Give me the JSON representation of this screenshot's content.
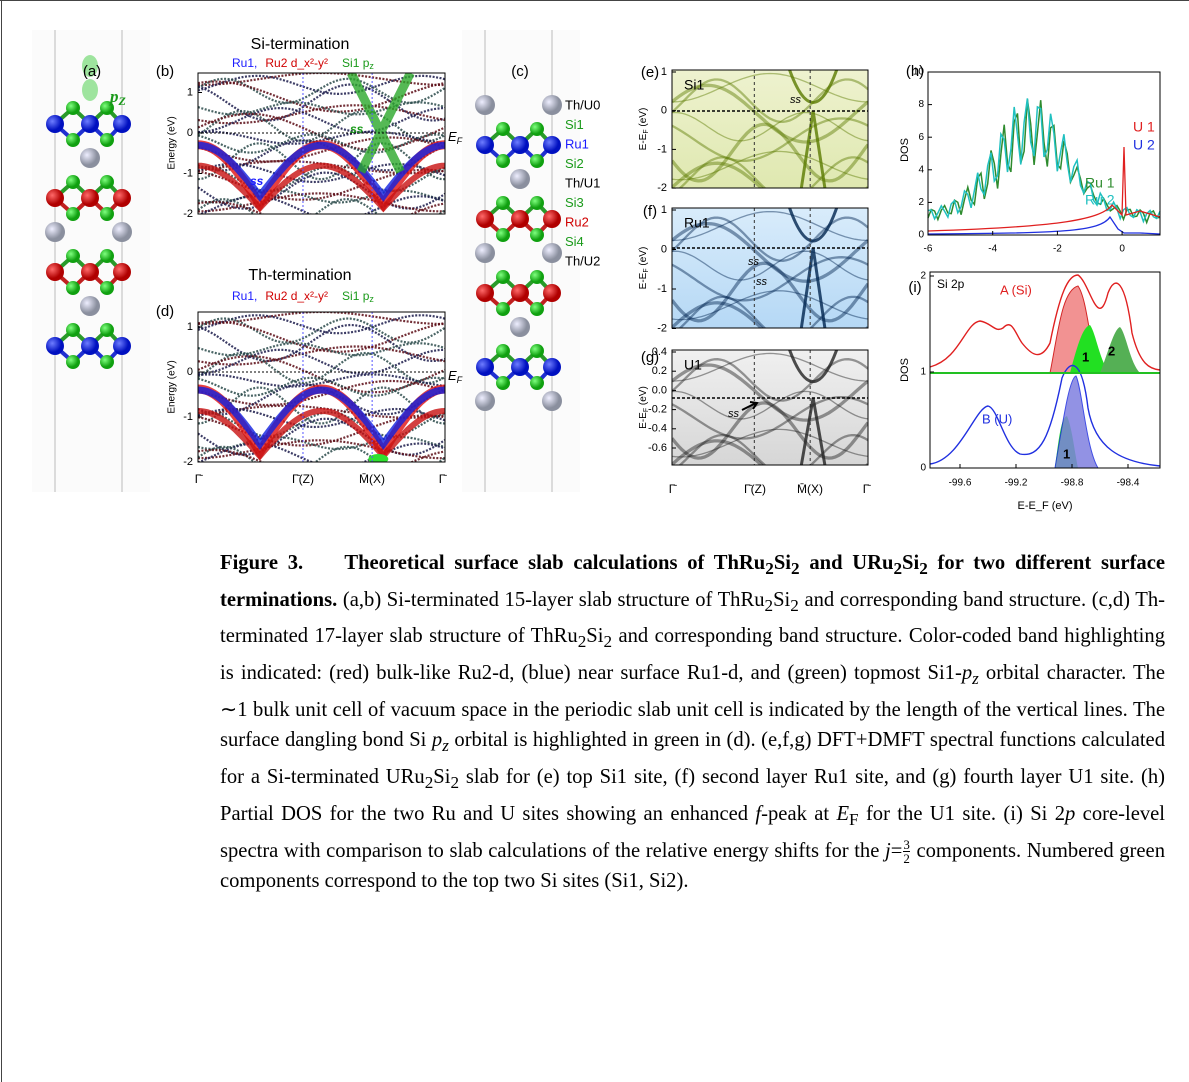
{
  "figure": {
    "a": {
      "label": "(a)",
      "orbital": [
        "p",
        "Z"
      ]
    },
    "b": {
      "label": "(b)",
      "title": "Si-termination",
      "legend": [
        "Ru1,",
        "Ru2 d_x²-y²",
        "Si1 p",
        "z"
      ],
      "ylabel": "Energy (eV)",
      "yticks": [
        "1",
        "0",
        "-1",
        "-2"
      ],
      "ss": [
        "ss",
        "ss"
      ],
      "ef": [
        "E",
        "F"
      ]
    },
    "c": {
      "label": "(c)",
      "layers": [
        "Th/U0",
        "Si1",
        "Ru1",
        "Si2",
        "Th/U1",
        "Si3",
        "Ru2",
        "Si4",
        "Th/U2"
      ]
    },
    "d": {
      "label": "(d)",
      "title": "Th-termination",
      "legend": [
        "Ru1,",
        "Ru2 d_x²-y²",
        "Si1 p",
        "z"
      ],
      "ylabel": "Energy (eV)",
      "yticks": [
        "1",
        "0",
        "-1",
        "-2"
      ],
      "ef": [
        "E",
        "F"
      ]
    },
    "band_xticks": [
      "Γ̄",
      "Γ̄(Z)",
      "M̄(X)",
      "Γ̄"
    ],
    "e": {
      "label": "(e)",
      "site": "Si1",
      "ylabel": [
        "E-E",
        "F",
        " (eV)"
      ],
      "yticks": [
        "1",
        "0",
        "-1",
        "-2"
      ],
      "ss": "ss"
    },
    "f": {
      "label": "(f)",
      "site": "Ru1",
      "ylabel": [
        "E-E",
        "F",
        " (eV)"
      ],
      "yticks": [
        "1",
        "0",
        "-1",
        "-2"
      ],
      "ss": [
        "ss",
        "ss"
      ]
    },
    "g": {
      "label": "(g)",
      "site": "U1",
      "ylabel": [
        "E-E",
        "F",
        " (eV)"
      ],
      "yticks": [
        "0.4",
        "0.2",
        "0.0",
        "-0.2",
        "-0.4",
        "-0.6"
      ],
      "ss": "ss"
    },
    "spectral_xticks": [
      "Γ̄",
      "Γ̄(Z)",
      "M̄(X)",
      "Γ̄"
    ],
    "h": {
      "label": "(h)",
      "ylabel": "DOS",
      "yticks": [
        "0",
        "2",
        "4",
        "6",
        "8",
        "10"
      ],
      "xticks": [
        "-6",
        "-4",
        "-2",
        "0"
      ],
      "legend": [
        "U 1",
        "U 2",
        "Ru 1",
        "Ru 2"
      ]
    },
    "i": {
      "label": "(i)",
      "title": "Si 2p",
      "ylabel": "DOS",
      "yticks": [
        "0",
        "1",
        "2"
      ],
      "xticks": [
        "-99.6",
        "-99.2",
        "-98.8",
        "-98.4"
      ],
      "xlabel": "E-E_F (eV)",
      "curve_a": "A (Si)",
      "curve_b": "B (U)",
      "components": [
        "1",
        "2",
        "1"
      ]
    }
  },
  "caption": {
    "label": "Figure 3.",
    "title": [
      "Theoretical surface slab calculations of ThRu",
      "2",
      "Si",
      "2",
      " and URu",
      "2",
      "Si",
      "2",
      " for two different surface terminations."
    ],
    "body": [
      "(a,b) Si-terminated 15-layer slab structure of ThRu",
      "2",
      "Si",
      "2",
      " and corresponding band structure. (c,d) Th-terminated 17-layer slab structure of ThRu",
      "2",
      "Si",
      "2",
      " and corresponding band structure. Color-coded band highlighting is indicated: (red) bulk-like Ru2-d, (blue) near surface Ru1-d, and (green) topmost Si1-",
      "p",
      "z",
      " orbital character. The ∼1 bulk unit cell of vacuum space in the periodic slab unit cell is indicated by the length of the vertical lines. The surface dangling bond Si ",
      "p",
      "z",
      " orbital is highlighted in green in (d). (e,f,g) DFT+DMFT spectral functions calculated for a Si-terminated URu",
      "2",
      "Si",
      "2",
      " slab for (e) top Si1 site, (f) second layer Ru1 site, and (g) fourth layer U1 site. (h) Partial DOS for the two Ru and U sites showing an enhanced ",
      "f",
      "-peak at ",
      "E",
      "F",
      " for the U1 site. (i) Si 2",
      "p",
      " core-level spectra with comparison to slab calculations of the relative energy shifts for the ",
      "j",
      "=",
      "3",
      "2",
      " components. Numbered green components correspond to the top two Si sites (Si1, Si2)."
    ]
  }
}
